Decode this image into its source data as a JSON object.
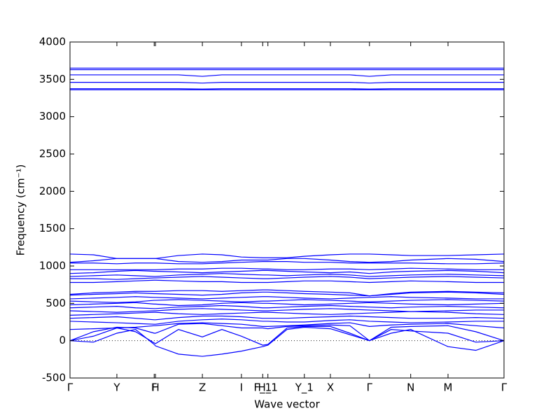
{
  "chart_data": {
    "type": "line",
    "xlabel": "Wave vector",
    "ylabel": "Frequency (cm⁻¹)",
    "x": [
      0,
      0.054,
      0.108,
      0.151,
      0.194,
      0.197,
      0.25,
      0.305,
      0.35,
      0.395,
      0.444,
      0.456,
      0.5,
      0.54,
      0.6,
      0.645,
      0.69,
      0.74,
      0.785,
      0.871,
      0.935,
      1.0
    ],
    "xlim": [
      0,
      1
    ],
    "xticks": [
      {
        "value": 0,
        "label": "Γ"
      },
      {
        "value": 0.108,
        "label": "Y"
      },
      {
        "value": 0.194,
        "label": "F"
      },
      {
        "value": 0.197,
        "label": "H"
      },
      {
        "value": 0.305,
        "label": "Z"
      },
      {
        "value": 0.395,
        "label": "I"
      },
      {
        "value": 0.444,
        "label": "F_1"
      },
      {
        "value": 0.456,
        "label": "H_1"
      },
      {
        "value": 0.54,
        "label": "Y_1"
      },
      {
        "value": 0.6,
        "label": "X"
      },
      {
        "value": 0.69,
        "label": "Γ"
      },
      {
        "value": 0.785,
        "label": "N"
      },
      {
        "value": 0.871,
        "label": "M"
      },
      {
        "value": 1.0,
        "label": "Γ"
      }
    ],
    "ylim": [
      -500,
      4000
    ],
    "yticks": [
      -500,
      0,
      500,
      1000,
      1500,
      2000,
      2500,
      3000,
      3500,
      4000
    ],
    "series": [
      {
        "color": "#0000ff",
        "values": [
          0,
          -20,
          100,
          150,
          -50,
          -70,
          -180,
          -210,
          -180,
          -140,
          -80,
          -60,
          150,
          180,
          160,
          80,
          0,
          100,
          150,
          -80,
          -130,
          0
        ]
      },
      {
        "color": "#0000ff",
        "values": [
          0,
          60,
          170,
          120,
          -30,
          -40,
          150,
          50,
          150,
          60,
          -60,
          -50,
          170,
          190,
          190,
          100,
          0,
          150,
          130,
          100,
          -20,
          0
        ]
      },
      {
        "color": "#0000ff",
        "values": [
          0,
          120,
          180,
          170,
          100,
          100,
          220,
          230,
          200,
          170,
          170,
          160,
          190,
          200,
          210,
          200,
          0,
          180,
          190,
          200,
          120,
          0
        ]
      },
      {
        "color": "#0000ff",
        "values": [
          150,
          160,
          170,
          180,
          200,
          200,
          230,
          240,
          230,
          220,
          190,
          190,
          200,
          210,
          230,
          240,
          190,
          210,
          220,
          230,
          200,
          170
        ]
      },
      {
        "color": "#0000ff",
        "values": [
          260,
          250,
          240,
          230,
          220,
          220,
          260,
          280,
          290,
          280,
          260,
          260,
          250,
          250,
          270,
          280,
          260,
          250,
          240,
          250,
          260,
          260
        ]
      },
      {
        "color": "#0000ff",
        "values": [
          300,
          310,
          320,
          300,
          280,
          280,
          310,
          330,
          330,
          320,
          300,
          300,
          300,
          310,
          320,
          330,
          320,
          310,
          300,
          300,
          310,
          300
        ]
      },
      {
        "color": "#0000ff",
        "values": [
          340,
          350,
          360,
          370,
          380,
          380,
          360,
          350,
          360,
          370,
          380,
          380,
          370,
          360,
          350,
          360,
          370,
          380,
          390,
          380,
          360,
          350
        ]
      },
      {
        "color": "#0000ff",
        "values": [
          400,
          390,
          380,
          390,
          400,
          400,
          420,
          430,
          420,
          410,
          400,
          400,
          410,
          420,
          430,
          420,
          410,
          400,
          390,
          400,
          410,
          410
        ]
      },
      {
        "color": "#0000ff",
        "values": [
          440,
          450,
          460,
          440,
          430,
          430,
          450,
          460,
          470,
          460,
          440,
          440,
          450,
          460,
          470,
          460,
          450,
          440,
          450,
          460,
          450,
          440
        ]
      },
      {
        "color": "#0000ff",
        "values": [
          480,
          490,
          500,
          510,
          490,
          490,
          470,
          480,
          500,
          510,
          500,
          500,
          490,
          480,
          490,
          500,
          510,
          500,
          490,
          480,
          490,
          500
        ]
      },
      {
        "color": "#0000ff",
        "values": [
          530,
          520,
          510,
          520,
          540,
          540,
          550,
          540,
          530,
          520,
          530,
          530,
          540,
          550,
          540,
          530,
          520,
          530,
          540,
          550,
          540,
          530
        ]
      },
      {
        "color": "#0000ff",
        "values": [
          560,
          570,
          580,
          590,
          580,
          580,
          570,
          560,
          570,
          580,
          590,
          590,
          580,
          570,
          560,
          570,
          580,
          590,
          580,
          570,
          560,
          560
        ]
      },
      {
        "color": "#0000ff",
        "values": [
          610,
          620,
          630,
          640,
          630,
          630,
          620,
          610,
          620,
          640,
          650,
          650,
          640,
          630,
          620,
          610,
          600,
          620,
          640,
          650,
          640,
          620
        ]
      },
      {
        "color": "#0000ff",
        "values": [
          620,
          640,
          650,
          660,
          660,
          660,
          670,
          670,
          660,
          670,
          680,
          680,
          670,
          660,
          650,
          640,
          600,
          630,
          650,
          660,
          650,
          640
        ]
      },
      {
        "color": "#0000ff",
        "values": [
          780,
          780,
          790,
          800,
          810,
          810,
          800,
          790,
          790,
          780,
          780,
          780,
          790,
          800,
          800,
          790,
          780,
          790,
          800,
          790,
          780,
          780
        ]
      },
      {
        "color": "#0000ff",
        "values": [
          830,
          830,
          820,
          830,
          840,
          840,
          850,
          860,
          850,
          840,
          830,
          830,
          840,
          850,
          860,
          850,
          830,
          840,
          850,
          860,
          850,
          840
        ]
      },
      {
        "color": "#0000ff",
        "values": [
          860,
          870,
          880,
          870,
          860,
          860,
          880,
          890,
          900,
          890,
          880,
          880,
          870,
          880,
          890,
          880,
          860,
          870,
          880,
          890,
          880,
          870
        ]
      },
      {
        "color": "#0000ff",
        "values": [
          900,
          910,
          930,
          940,
          930,
          930,
          920,
          910,
          920,
          930,
          940,
          940,
          930,
          920,
          910,
          920,
          900,
          920,
          930,
          940,
          930,
          910
        ]
      },
      {
        "color": "#0000ff",
        "values": [
          950,
          950,
          950,
          950,
          950,
          950,
          960,
          960,
          970,
          970,
          960,
          960,
          950,
          950,
          960,
          960,
          950,
          960,
          970,
          960,
          950,
          950
        ]
      },
      {
        "color": "#0000ff",
        "values": [
          1040,
          1040,
          1030,
          1040,
          1040,
          1040,
          1030,
          1030,
          1040,
          1050,
          1060,
          1060,
          1060,
          1050,
          1050,
          1040,
          1040,
          1040,
          1040,
          1030,
          1030,
          1040
        ]
      },
      {
        "color": "#0000ff",
        "values": [
          1050,
          1070,
          1100,
          1100,
          1100,
          1100,
          1060,
          1050,
          1060,
          1080,
          1080,
          1080,
          1100,
          1100,
          1080,
          1060,
          1050,
          1060,
          1080,
          1100,
          1090,
          1060
        ]
      },
      {
        "color": "#0000ff",
        "values": [
          1160,
          1150,
          1100,
          1100,
          1100,
          1100,
          1140,
          1160,
          1150,
          1120,
          1110,
          1110,
          1110,
          1130,
          1150,
          1160,
          1160,
          1150,
          1140,
          1140,
          1150,
          1160
        ]
      },
      {
        "color": "#0000ff",
        "values": [
          3360,
          3360,
          3360,
          3360,
          3360,
          3360,
          3360,
          3360,
          3360,
          3360,
          3360,
          3360,
          3360,
          3360,
          3360,
          3360,
          3360,
          3360,
          3360,
          3360,
          3360,
          3360
        ]
      },
      {
        "color": "#0000ff",
        "values": [
          3375,
          3375,
          3375,
          3375,
          3375,
          3375,
          3375,
          3370,
          3375,
          3375,
          3375,
          3375,
          3375,
          3375,
          3375,
          3375,
          3370,
          3375,
          3375,
          3375,
          3375,
          3375
        ]
      },
      {
        "color": "#0000ff",
        "values": [
          3460,
          3460,
          3460,
          3460,
          3460,
          3460,
          3460,
          3450,
          3460,
          3460,
          3460,
          3460,
          3460,
          3460,
          3460,
          3460,
          3450,
          3460,
          3460,
          3460,
          3460,
          3460
        ]
      },
      {
        "color": "#0000ff",
        "values": [
          3560,
          3560,
          3560,
          3560,
          3560,
          3560,
          3560,
          3540,
          3560,
          3560,
          3560,
          3560,
          3560,
          3560,
          3560,
          3560,
          3540,
          3560,
          3560,
          3560,
          3560,
          3560
        ]
      },
      {
        "color": "#0000ff",
        "values": [
          3630,
          3630,
          3630,
          3630,
          3630,
          3630,
          3630,
          3630,
          3630,
          3630,
          3630,
          3630,
          3630,
          3630,
          3630,
          3630,
          3630,
          3630,
          3630,
          3630,
          3630,
          3630
        ]
      },
      {
        "color": "#0000ff",
        "values": [
          3650,
          3650,
          3650,
          3650,
          3650,
          3650,
          3650,
          3650,
          3650,
          3650,
          3650,
          3650,
          3650,
          3650,
          3650,
          3650,
          3650,
          3650,
          3650,
          3650,
          3650,
          3650
        ]
      }
    ]
  }
}
